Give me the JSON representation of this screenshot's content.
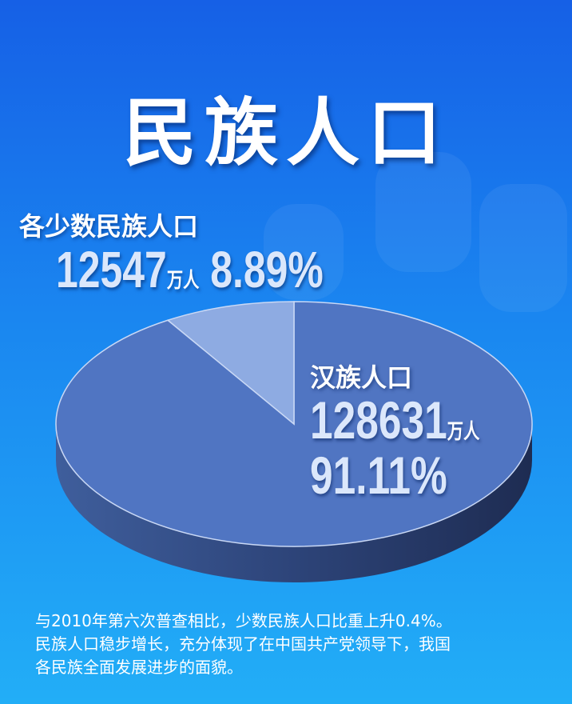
{
  "title": "民族人口",
  "chart_data": {
    "type": "pie",
    "style": "3d",
    "slices": [
      {
        "label": "各少数民族人口",
        "value": 12547,
        "unit": "万人",
        "percent": "8.89%",
        "color": "#8eabe2"
      },
      {
        "label": "汉族人口",
        "value": 128631,
        "unit": "万人",
        "percent": "91.11%",
        "color": "#5075c2"
      }
    ]
  },
  "labels": {
    "minority_title": "各少数民族人口",
    "minority_value": "12547",
    "minority_unit": "万人",
    "minority_percent": "8.89%",
    "han_title": "汉族人口",
    "han_value": "128631",
    "han_unit": "万人",
    "han_percent": "91.11%"
  },
  "note": [
    "与2010年第六次普查相比，少数民族人口比重上升0.4%。",
    "民族人口稳步增长，充分体现了在中国共产党领导下，我国",
    "各民族全面发展进步的面貌。"
  ]
}
